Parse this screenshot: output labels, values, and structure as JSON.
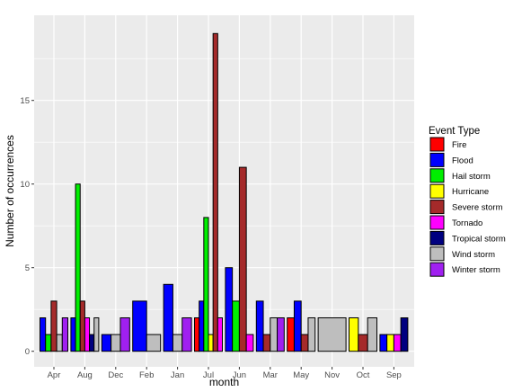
{
  "chart_data": {
    "type": "bar",
    "xlabel": "month",
    "ylabel": "Number of occurrences",
    "ylim": [
      0,
      20
    ],
    "yticks": [
      0,
      5,
      10,
      15
    ],
    "legend_title": "Event Type",
    "legend_position": "right",
    "grid": true,
    "categories": [
      "Apr",
      "Aug",
      "Dec",
      "Feb",
      "Jan",
      "Jul",
      "Jun",
      "Mar",
      "May",
      "Nov",
      "Oct",
      "Sep"
    ],
    "series": [
      {
        "name": "Fire",
        "color": "#FF0000"
      },
      {
        "name": "Flood",
        "color": "#0000FF"
      },
      {
        "name": "Hail storm",
        "color": "#00EE00"
      },
      {
        "name": "Hurricane",
        "color": "#FFFF00"
      },
      {
        "name": "Severe storm",
        "color": "#A52A2A"
      },
      {
        "name": "Tornado",
        "color": "#FF00FF"
      },
      {
        "name": "Tropical storm",
        "color": "#000080"
      },
      {
        "name": "Wind storm",
        "color": "#BEBEBE"
      },
      {
        "name": "Winter storm",
        "color": "#A020F0"
      }
    ],
    "groups": [
      {
        "month": "Apr",
        "bars": [
          {
            "type": "Flood",
            "value": 2
          },
          {
            "type": "Hail storm",
            "value": 1
          },
          {
            "type": "Severe storm",
            "value": 3
          },
          {
            "type": "Wind storm",
            "value": 1
          },
          {
            "type": "Winter storm",
            "value": 2
          }
        ]
      },
      {
        "month": "Aug",
        "bars": [
          {
            "type": "Flood",
            "value": 2
          },
          {
            "type": "Hail storm",
            "value": 10
          },
          {
            "type": "Severe storm",
            "value": 3
          },
          {
            "type": "Tornado",
            "value": 2
          },
          {
            "type": "Tropical storm",
            "value": 1
          },
          {
            "type": "Wind storm",
            "value": 2
          }
        ]
      },
      {
        "month": "Dec",
        "bars": [
          {
            "type": "Flood",
            "value": 1
          },
          {
            "type": "Wind storm",
            "value": 1
          },
          {
            "type": "Winter storm",
            "value": 2
          }
        ]
      },
      {
        "month": "Feb",
        "bars": [
          {
            "type": "Flood",
            "value": 3
          },
          {
            "type": "Wind storm",
            "value": 1
          }
        ]
      },
      {
        "month": "Jan",
        "bars": [
          {
            "type": "Flood",
            "value": 4
          },
          {
            "type": "Wind storm",
            "value": 1
          },
          {
            "type": "Winter storm",
            "value": 2
          }
        ]
      },
      {
        "month": "Jul",
        "bars": [
          {
            "type": "Fire",
            "value": 2
          },
          {
            "type": "Flood",
            "value": 3
          },
          {
            "type": "Hail storm",
            "value": 8
          },
          {
            "type": "Hurricane",
            "value": 1
          },
          {
            "type": "Severe storm",
            "value": 19
          },
          {
            "type": "Tornado",
            "value": 2
          }
        ]
      },
      {
        "month": "Jun",
        "bars": [
          {
            "type": "Flood",
            "value": 5
          },
          {
            "type": "Hail storm",
            "value": 3
          },
          {
            "type": "Severe storm",
            "value": 11
          },
          {
            "type": "Tornado",
            "value": 1
          }
        ]
      },
      {
        "month": "Mar",
        "bars": [
          {
            "type": "Flood",
            "value": 3
          },
          {
            "type": "Severe storm",
            "value": 1
          },
          {
            "type": "Wind storm",
            "value": 2
          },
          {
            "type": "Winter storm",
            "value": 2
          }
        ]
      },
      {
        "month": "May",
        "bars": [
          {
            "type": "Fire",
            "value": 2
          },
          {
            "type": "Flood",
            "value": 3
          },
          {
            "type": "Severe storm",
            "value": 1
          },
          {
            "type": "Wind storm",
            "value": 2
          }
        ]
      },
      {
        "month": "Nov",
        "bars": [
          {
            "type": "Wind storm",
            "value": 2
          }
        ]
      },
      {
        "month": "Oct",
        "bars": [
          {
            "type": "Hurricane",
            "value": 2
          },
          {
            "type": "Severe storm",
            "value": 1
          },
          {
            "type": "Wind storm",
            "value": 2
          }
        ]
      },
      {
        "month": "Sep",
        "bars": [
          {
            "type": "Flood",
            "value": 1
          },
          {
            "type": "Hurricane",
            "value": 1
          },
          {
            "type": "Tornado",
            "value": 1
          },
          {
            "type": "Tropical storm",
            "value": 2
          }
        ]
      }
    ]
  }
}
